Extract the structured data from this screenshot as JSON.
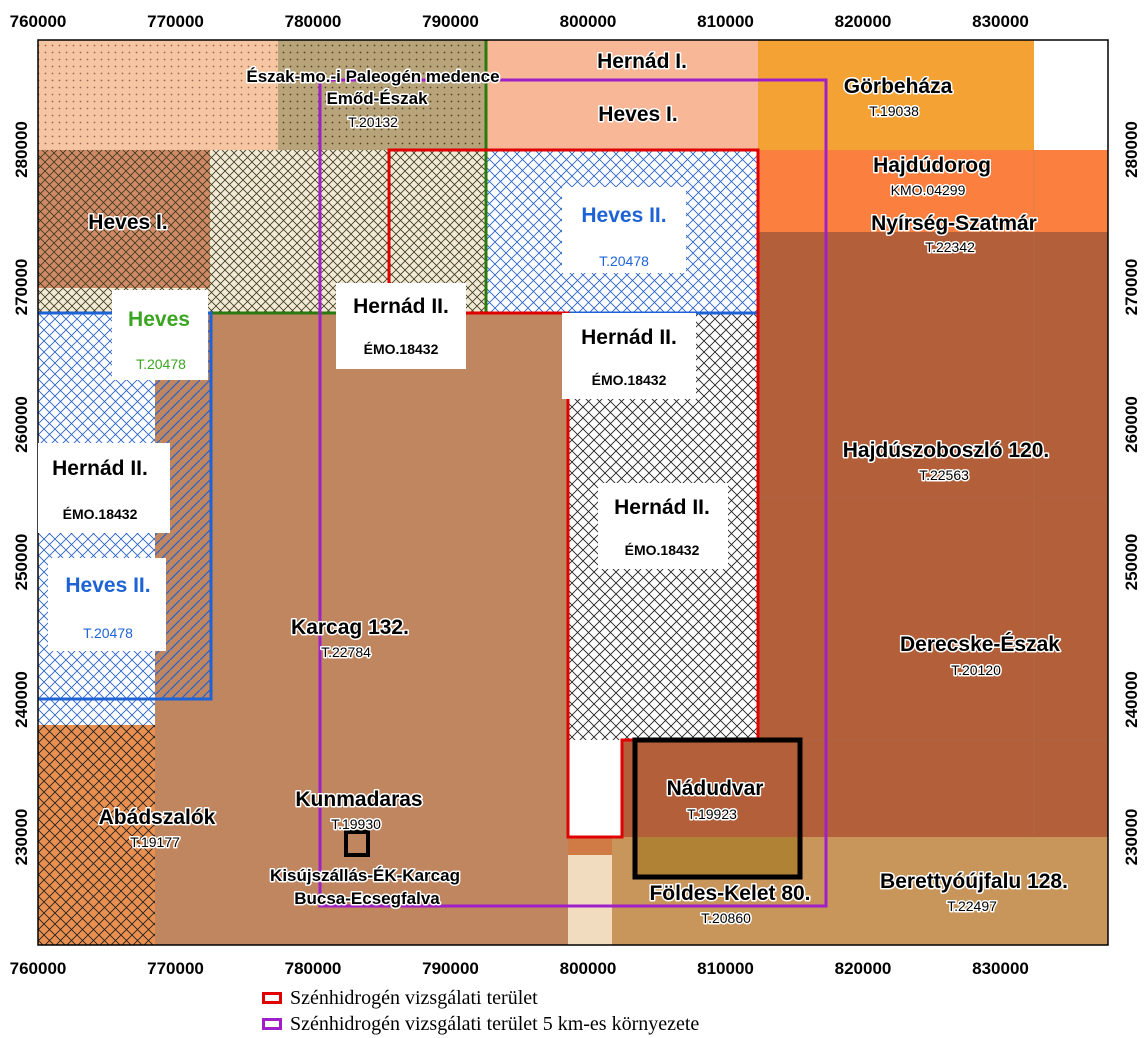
{
  "map": {
    "x_ticks": [
      "760000",
      "770000",
      "780000",
      "790000",
      "800000",
      "810000",
      "820000",
      "830000"
    ],
    "y_ticks": [
      "230000",
      "240000",
      "250000",
      "260000",
      "270000",
      "280000"
    ],
    "colors": {
      "hydrocarbon_area": "#e00000",
      "buffer_5km": "#a020c8",
      "heves_green": "#2a7a10",
      "heves2_blue": "#1e63d6",
      "karcag_fill": "#c08660",
      "hajdu_fill": "#b3603a",
      "hernad1_fill": "#f8b898",
      "gorbehaza_fill": "#f5a235",
      "nyirseg_fill": "#fb8040",
      "berettyo_fill": "#c8955a"
    },
    "labels": {
      "eszak_mo": "Észak-mo.-i Paleogén medence",
      "emod": "Emőd-Észak",
      "emod_code": "T.20132",
      "hernad1": "Hernád I.",
      "heves1_top": "Heves I.",
      "gorbehaza": "Görbeháza",
      "gorbehaza_code": "T.19038",
      "hajdudorog": "Hajdúdorog",
      "hajdudorog_code": "KMO.04299",
      "nyirseg": "Nyírség-Szatmár",
      "nyirseg_code": "T.22342",
      "heves1_left": "Heves I.",
      "heves2_top": "Heves II.",
      "heves2_top_code": "T.20478",
      "heves_green": "Heves",
      "heves_green_code": "T.20478",
      "hernad2_a": "Hernád II.",
      "hernad2_a_code": "ÉMO.18432",
      "hernad2_b": "Hernád II.",
      "hernad2_b_code": "ÉMO.18432",
      "hernad2_left": "Hernád II.",
      "hernad2_left_code": "ÉMO.18432",
      "heves2_left": "Heves II.",
      "heves2_left_code": "T.20478",
      "hernad2_c": "Hernád II.",
      "hernad2_c_code": "ÉMO.18432",
      "hajduszoboszlo": "Hajdúszoboszló 120.",
      "hajduszoboszlo_code": "T.22563",
      "derecske": "Derecske-Észak",
      "derecske_code": "T.20120",
      "karcag": "Karcag 132.",
      "karcag_code": "T.22784",
      "kunmadaras": "Kunmadaras",
      "kunmadaras_code": "T.19930",
      "abadszalok": "Abádszalók",
      "abadszalok_code": "T.19177",
      "nadudvar": "Nádudvar",
      "nadudvar_code": "T.19923",
      "kisujszallas": "Kisújszállás-ÉK-Karcag",
      "bucsa": "Bucsa-Ecsegfalva",
      "foldes": "Földes-Kelet 80.",
      "foldes_code": "T.20860",
      "berettyo": "Berettyóújfalu 128.",
      "berettyo_code": "T.22497"
    }
  },
  "legend": {
    "items": [
      {
        "label": "Szénhidrogén vizsgálati terület",
        "color": "#e00000"
      },
      {
        "label": "Szénhidrogén vizsgálati terület 5 km-es környezete",
        "color": "#a020c8"
      }
    ]
  }
}
